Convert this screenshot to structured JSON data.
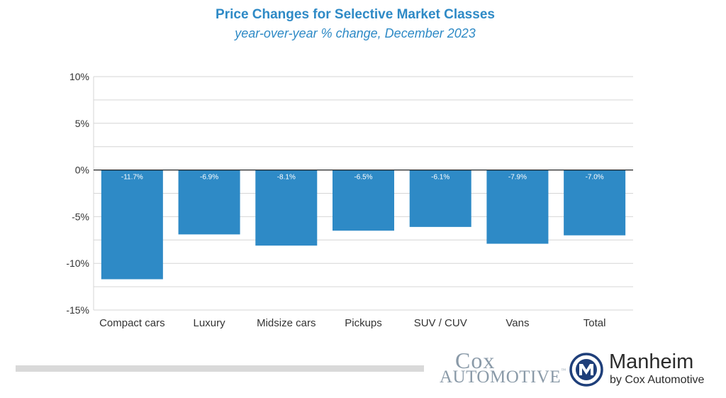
{
  "chart_data": {
    "type": "bar",
    "title": "Price Changes for Selective Market Classes",
    "subtitle": "year-over-year % change, December 2023",
    "categories": [
      "Compact cars",
      "Luxury",
      "Midsize cars",
      "Pickups",
      "SUV / CUV",
      "Vans",
      "Total"
    ],
    "values": [
      -11.7,
      -6.9,
      -8.1,
      -6.5,
      -6.1,
      -7.9,
      -7.0
    ],
    "data_labels": [
      "-11.7%",
      "-6.9%",
      "-8.1%",
      "-6.5%",
      "-6.1%",
      "-7.9%",
      "-7.0%"
    ],
    "yticks": [
      10,
      5,
      0,
      -5,
      -10,
      -15
    ],
    "ytick_labels": [
      "10%",
      "5%",
      "0%",
      "-5%",
      "-10%",
      "-15%"
    ],
    "ylim": [
      -15,
      10
    ],
    "xlabel": "",
    "ylabel": "",
    "grid": true,
    "bar_color": "#2e8ac6",
    "title_color": "#2e8ac6"
  },
  "footer": {
    "cox_line1": "Cox",
    "cox_line2": "Automotive",
    "cox_tm": "™",
    "manheim_name": "Manheim",
    "manheim_sub": "by Cox Automotive",
    "manheim_color": "#1f3f7a"
  }
}
